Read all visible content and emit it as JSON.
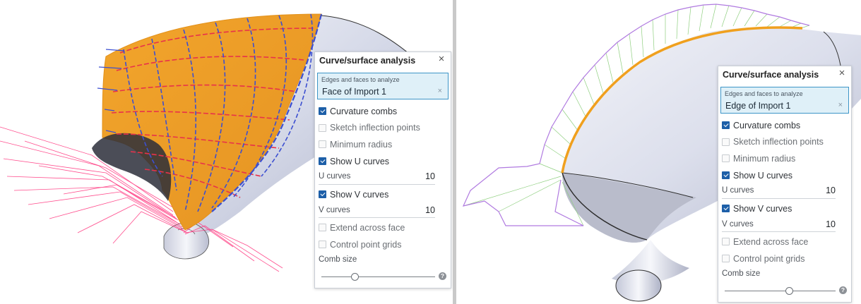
{
  "left_panel": {
    "title": "Curve/surface analysis",
    "close_icon": "×",
    "selection_label": "Edges and faces to analyze",
    "selection_value": "Face of Import 1",
    "clear_icon": "×",
    "options": {
      "curvature_combs": {
        "label": "Curvature combs",
        "checked": true
      },
      "sketch_inflection_points": {
        "label": "Sketch inflection points",
        "checked": false
      },
      "minimum_radius": {
        "label": "Minimum radius",
        "checked": false
      },
      "show_u_curves": {
        "label": "Show U curves",
        "checked": true
      },
      "show_v_curves": {
        "label": "Show V curves",
        "checked": true
      },
      "extend_across_face": {
        "label": "Extend across face",
        "checked": false
      },
      "control_point_grids": {
        "label": "Control point grids",
        "checked": false
      }
    },
    "u_curves": {
      "label": "U curves",
      "value": "10"
    },
    "v_curves": {
      "label": "V curves",
      "value": "10"
    },
    "comb_size": {
      "label": "Comb size",
      "level": 0.29
    },
    "help_icon": "?"
  },
  "right_panel": {
    "title": "Curve/surface analysis",
    "close_icon": "×",
    "selection_label": "Edges and faces to analyze",
    "selection_value": "Edge of Import 1",
    "clear_icon": "×",
    "options": {
      "curvature_combs": {
        "label": "Curvature combs",
        "checked": true
      },
      "sketch_inflection_points": {
        "label": "Sketch inflection points",
        "checked": false
      },
      "minimum_radius": {
        "label": "Minimum radius",
        "checked": false
      },
      "show_u_curves": {
        "label": "Show U curves",
        "checked": true
      },
      "show_v_curves": {
        "label": "Show V curves",
        "checked": true
      },
      "extend_across_face": {
        "label": "Extend across face",
        "checked": false
      },
      "control_point_grids": {
        "label": "Control point grids",
        "checked": false
      }
    },
    "u_curves": {
      "label": "U curves",
      "value": "10"
    },
    "v_curves": {
      "label": "V curves",
      "value": "10"
    },
    "comb_size": {
      "label": "Comb size",
      "level": 0.58
    },
    "help_icon": "?"
  },
  "colors": {
    "face_highlight": "#f0a22a",
    "edge_highlight": "#f0a01e",
    "u_curve": "#e8324a",
    "v_curve": "#3c4fd0",
    "comb_left": "#ff2f7a",
    "comb_right_outline": "#b07ae0",
    "comb_right_teeth": "#8fcf7f",
    "body_surface": "#dfe2ee",
    "selection_fill": "#dff0f8",
    "selection_border": "#3d95c7",
    "checkbox_on": "#1d5fa8"
  }
}
